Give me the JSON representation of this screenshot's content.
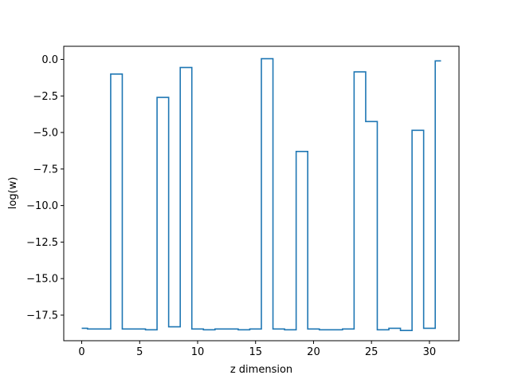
{
  "chart_data": {
    "type": "line",
    "drawstyle": "steps-mid",
    "title": "",
    "xlabel": "z dimension",
    "ylabel": "log(w)",
    "xlim": [
      -1.55,
      32.55
    ],
    "ylim": [
      -19.25,
      0.9
    ],
    "x_ticks": [
      0,
      5,
      10,
      15,
      20,
      25,
      30
    ],
    "y_ticks": [
      0.0,
      -2.5,
      -5.0,
      -7.5,
      -10.0,
      -12.5,
      -15.0,
      -17.5
    ],
    "x_tick_labels": [
      "0",
      "5",
      "10",
      "15",
      "20",
      "25",
      "30"
    ],
    "y_tick_labels": [
      "0.0",
      "−2.5",
      "−5.0",
      "−7.5",
      "−10.0",
      "−12.5",
      "−15.0",
      "−17.5"
    ],
    "grid": false,
    "legend": "none",
    "series": [
      {
        "color": "#1f77b4",
        "x": [
          0,
          1,
          2,
          3,
          4,
          5,
          6,
          7,
          8,
          9,
          10,
          11,
          12,
          13,
          14,
          15,
          16,
          17,
          18,
          19,
          20,
          21,
          22,
          23,
          24,
          25,
          26,
          27,
          28,
          29,
          30,
          31
        ],
        "values": [
          -18.4,
          -18.45,
          -18.45,
          -1.0,
          -18.45,
          -18.45,
          -18.5,
          -2.6,
          -18.3,
          -0.55,
          -18.45,
          -18.5,
          -18.45,
          -18.45,
          -18.5,
          -18.45,
          0.05,
          -18.45,
          -18.5,
          -6.3,
          -18.45,
          -18.5,
          -18.5,
          -18.45,
          -0.85,
          -4.25,
          -18.5,
          -18.4,
          -18.55,
          -4.85,
          -18.4,
          -0.1
        ]
      }
    ]
  }
}
